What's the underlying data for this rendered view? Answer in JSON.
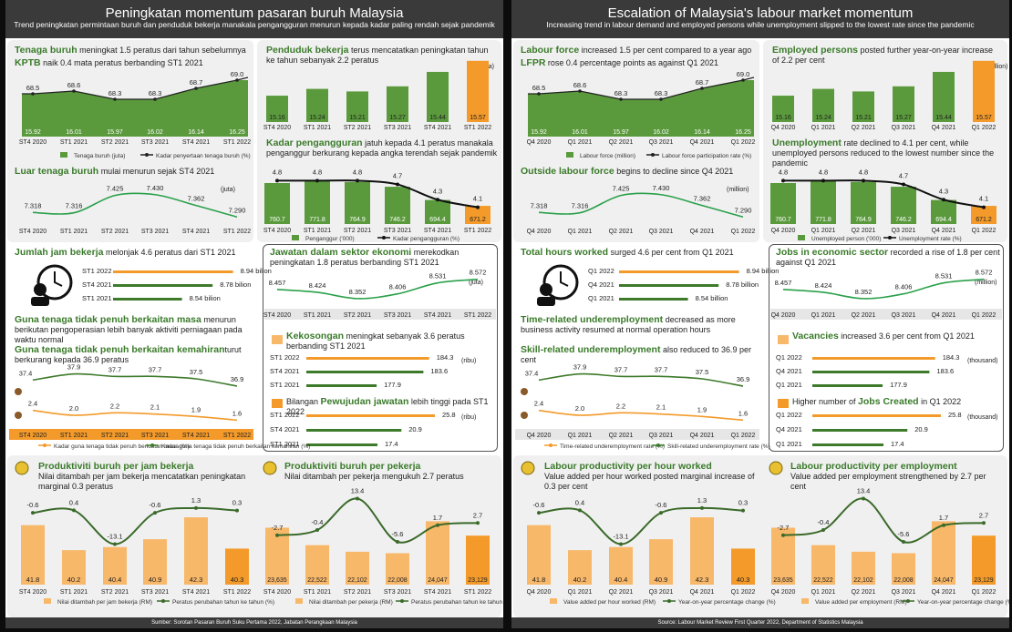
{
  "panels": [
    {
      "header": {
        "title": "Peningkatan momentum pasaran buruh Malaysia",
        "subtitle": "Trend peningkatan permintaan buruh dan penduduk bekerja manakala pengangguran menurun kepada kadar paling rendah sejak pandemik"
      },
      "footer": "Sumber: Sorotan Pasaran Buruh Suku Pertama 2022, Jabatan Perangkaan Malaysia",
      "quarters": [
        "ST4 2020",
        "ST1 2021",
        "ST2 2021",
        "ST3 2021",
        "ST4 2021",
        "ST1 2022"
      ],
      "lf": {
        "h1": "Tenaga buruh",
        "t1": " meningkat 1.5 peratus dari tahun sebelumnya",
        "h2": "KPTB",
        "t2": " naik 0.4 mata peratus berbanding ST1 2021",
        "leg1": "Tenaga buruh (juta)",
        "leg2": "Kadar penyertaan tenaga buruh (%)"
      },
      "emp": {
        "h": "Penduduk bekerja",
        "t": " terus mencatatkan peningkatan tahun ke tahun sebanyak 2.2 peratus",
        "unit": "(juta)"
      },
      "olf": {
        "h": "Luar tenaga buruh",
        "t": " mulai menurun sejak ST4 2021",
        "unit": "(juta)"
      },
      "unemp": {
        "h": "Kadar pengangguran",
        "t": " jatuh kepada 4.1 peratus manakala penganggur berkurang kepada angka terendah sejak pandemik",
        "leg1": "Penganggur ('000)",
        "leg2": "Kadar pengangguran (%)"
      },
      "hours": {
        "h": "Jumlah jam bekerja",
        "t": " melonjak 4.6 peratus dari ST1 2021",
        "rows": [
          {
            "label": "ST1 2022",
            "value": "8.94 bilion"
          },
          {
            "label": "ST4 2021",
            "value": "8.78 bilion"
          },
          {
            "label": "ST1 2021",
            "value": "8.54 bilion"
          }
        ]
      },
      "jobs": {
        "h": "Jawatan dalam sektor ekonomi",
        "t": " merekodkan peningkatan 1.8 peratus berbanding ST1 2021",
        "unit": "(juta)"
      },
      "under": {
        "h1": "Guna tenaga tidak penuh berkaitan masa",
        "t1": " menurun berikutan pengoperasian lebih banyak aktiviti perniagaan pada waktu normal",
        "h2": "Guna tenaga tidak penuh berkaitan kemahiran",
        "t2": "turut berkurang kepada 36.9 peratus",
        "leg1": "Kadar guna tenaga tidak penuh berkaitan masa (%)",
        "leg2": "Kadar guna tenaga tidak penuh berkaitan kemahiran (%)"
      },
      "vac": {
        "h": "Kekosongan",
        "t": " meningkat sebanyak 3.6 peratus berbanding ST1 2021",
        "unit": "(ribu)",
        "rows": [
          {
            "label": "ST1 2022",
            "value": "184.3"
          },
          {
            "label": "ST4 2021",
            "value": "183.6"
          },
          {
            "label": "ST1 2021",
            "value": "177.9"
          }
        ]
      },
      "created": {
        "pre": "Bilangan ",
        "h": "Pewujudan jawatan",
        "t": " lebih tinggi pada ST1 2022",
        "unit": "(ribu)",
        "rows": [
          {
            "label": "ST1 2022",
            "value": "25.8"
          },
          {
            "label": "ST4 2021",
            "value": "20.9"
          },
          {
            "label": "ST1 2021",
            "value": "17.4"
          }
        ]
      },
      "prodh": {
        "h": "Produktiviti buruh per jam bekerja",
        "t": "Nilai ditambah per jam bekerja mencatatkan peningkatan marginal 0.3 peratus",
        "leg1": "Nilai ditambah per jam bekerja (RM)",
        "leg2": "Peratus perubahan tahun ke tahun (%)"
      },
      "prode": {
        "h": "Produktiviti buruh per pekerja",
        "t": "Nilai ditambah per pekerja mengukuh 2.7 peratus",
        "leg1": "Nilai ditambah per pekerja (RM)",
        "leg2": "Peratus perubahan tahun ke tahun (%)"
      }
    },
    {
      "header": {
        "title": "Escalation of Malaysia's labour market momentum",
        "subtitle": "Increasing trend in labour demand and employed persons while unemployment slipped to the lowest rate since the pandemic"
      },
      "footer": "Source: Labour Market Review First Quarter 2022, Department of Statistics Malaysia",
      "quarters": [
        "Q4 2020",
        "Q1 2021",
        "Q2 2021",
        "Q3 2021",
        "Q4 2021",
        "Q1 2022"
      ],
      "lf": {
        "h1": "Labour force",
        "t1": " increased 1.5 per cent compared to a year ago",
        "h2": "LFPR",
        "t2": " rose 0.4 percentage points as against Q1 2021",
        "leg1": "Labour force (million)",
        "leg2": "Labour force participation rate (%)"
      },
      "emp": {
        "h": "Employed persons",
        "t": " posted further year-on-year increase of 2.2 per cent",
        "unit": "(million)"
      },
      "olf": {
        "h": "Outside labour force",
        "t": " begins to decline since  Q4 2021",
        "unit": "(million)"
      },
      "unemp": {
        "h": "Unemployment",
        "t": " rate declined to 4.1 per cent, while unemployed persons reduced to the lowest number since the pandemic",
        "leg1": "Unemployed person ('000)",
        "leg2": "Unemployment rate (%)"
      },
      "hours": {
        "h": "Total hours worked",
        "t": " surged 4.6 per cent from Q1 2021",
        "rows": [
          {
            "label": "Q1 2022",
            "value": "8.94 billion"
          },
          {
            "label": "Q4 2021",
            "value": "8.78 billion"
          },
          {
            "label": "Q1 2021",
            "value": "8.54 billion"
          }
        ]
      },
      "jobs": {
        "h": "Jobs in economic sector",
        "t": " recorded a rise of 1.8 per cent against Q1 2021",
        "unit": "(million)"
      },
      "under": {
        "h1": "Time-related underemployment",
        "t1": " decreased as more business activity resumed at normal operation hours",
        "h2": "Skill-related underemployment",
        "t2": " also reduced to 36.9 per cent",
        "leg1": "Time-related underemployment rate (%)",
        "leg2": "Skill-related underemployment rate (%)"
      },
      "vac": {
        "h": "Vacancies",
        "t": " increased 3.6 per cent from Q1 2021",
        "unit": "(thousand)",
        "rows": [
          {
            "label": "Q1 2022",
            "value": "184.3"
          },
          {
            "label": "Q4 2021",
            "value": "183.6"
          },
          {
            "label": "Q1 2021",
            "value": "177.9"
          }
        ]
      },
      "created": {
        "pre": "Higher number of ",
        "h": "Jobs Created",
        "t": " in  Q1 2022",
        "unit": "(thousand)",
        "rows": [
          {
            "label": "Q1 2022",
            "value": "25.8"
          },
          {
            "label": "Q4 2021",
            "value": "20.9"
          },
          {
            "label": "Q1 2021",
            "value": "17.4"
          }
        ]
      },
      "prodh": {
        "h": "Labour productivity per hour worked",
        "t": "Value added  per hour worked posted marginal increase of 0.3 per cent",
        "leg1": "Value added per hour worked (RM)",
        "leg2": "Year-on-year percentage change (%)"
      },
      "prode": {
        "h": "Labour productivity per employment",
        "t": "Value added per employment strengthened by 2.7 per cent",
        "leg1": "Value added per employment (RM)",
        "leg2": "Year-on-year percentage change (%)"
      }
    }
  ],
  "chart_data": [
    {
      "type": "bar+line",
      "title": "Labour force / LFPR",
      "series": [
        {
          "name": "Labour force (million)",
          "values": [
            15.92,
            16.01,
            15.97,
            16.02,
            16.14,
            16.25
          ]
        },
        {
          "name": "Labour force participation rate (%)",
          "values": [
            68.5,
            68.6,
            68.3,
            68.3,
            68.7,
            69.0
          ]
        }
      ],
      "value_labels": [
        "15.92",
        "16.01",
        "15.97",
        "16.02",
        "16.14",
        "16.25"
      ],
      "line_labels": [
        "68.5",
        "68.6",
        "68.3",
        "68.3",
        "68.7",
        "69.0"
      ]
    },
    {
      "type": "bar",
      "title": "Employed persons",
      "values": [
        15.16,
        15.24,
        15.21,
        15.27,
        15.44,
        15.57
      ],
      "value_labels": [
        "15.16",
        "15.24",
        "15.21",
        "15.27",
        "15.44",
        "15.57"
      ]
    },
    {
      "type": "line",
      "title": "Outside labour force",
      "values": [
        7.318,
        7.316,
        7.425,
        7.43,
        7.362,
        7.29
      ],
      "value_labels": [
        "7.318",
        "7.316",
        "7.425",
        "7.430",
        "7.362",
        "7.290"
      ]
    },
    {
      "type": "bar+line",
      "title": "Unemployment",
      "series": [
        {
          "name": "Unemployed person ('000)",
          "values": [
            760.7,
            771.8,
            764.9,
            746.2,
            694.4,
            671.2
          ]
        },
        {
          "name": "Unemployment rate (%)",
          "values": [
            4.8,
            4.8,
            4.8,
            4.7,
            4.3,
            4.1
          ]
        }
      ],
      "value_labels": [
        "760.7",
        "771.8",
        "764.9",
        "746.2",
        "694.4",
        "671.2"
      ],
      "line_labels": [
        "4.8",
        "4.8",
        "4.8",
        "4.7",
        "4.3",
        "4.1"
      ]
    },
    {
      "type": "line",
      "title": "Jobs in economic sector",
      "values": [
        8.457,
        8.424,
        8.352,
        8.406,
        8.531,
        8.572
      ],
      "value_labels": [
        "8.457",
        "8.424",
        "8.352",
        "8.406",
        "8.531",
        "8.572"
      ]
    },
    {
      "type": "line",
      "title": "Underemployment",
      "series": [
        {
          "name": "Time-related",
          "values": [
            2.4,
            2.0,
            2.2,
            2.1,
            1.9,
            1.6
          ]
        },
        {
          "name": "Skill-related",
          "values": [
            37.4,
            37.9,
            37.7,
            37.7,
            37.5,
            36.9
          ]
        }
      ],
      "time_labels": [
        "2.4",
        "2.0",
        "2.2",
        "2.1",
        "1.9",
        "1.6"
      ],
      "skill_labels": [
        "37.4",
        "37.9",
        "37.7",
        "37.7",
        "37.5",
        "36.9"
      ]
    },
    {
      "type": "bar",
      "title": "Total hours worked (billion)",
      "values": [
        8.94,
        8.78,
        8.54
      ]
    },
    {
      "type": "bar",
      "title": "Vacancies (thousand)",
      "values": [
        184.3,
        183.6,
        177.9
      ]
    },
    {
      "type": "bar",
      "title": "Jobs created (thousand)",
      "values": [
        25.8,
        20.9,
        17.4
      ]
    },
    {
      "type": "bar+line",
      "title": "Labour productivity per hour worked",
      "series": [
        {
          "name": "Value added per hour worked (RM)",
          "values": [
            41.8,
            40.2,
            40.4,
            40.9,
            42.3,
            40.3
          ]
        },
        {
          "name": "Year-on-year percentage change (%)",
          "values": [
            -0.6,
            0.4,
            -13.1,
            -0.6,
            1.3,
            0.3
          ]
        }
      ],
      "value_labels": [
        "41.8",
        "40.2",
        "40.4",
        "40.9",
        "42.3",
        "40.3"
      ],
      "line_labels": [
        "-0.6",
        "0.4",
        "-13.1",
        "-0.6",
        "1.3",
        "0.3"
      ]
    },
    {
      "type": "bar+line",
      "title": "Labour productivity per employment",
      "series": [
        {
          "name": "Value added per employment (RM)",
          "values": [
            23635,
            22522,
            22102,
            22008,
            24047,
            23129
          ]
        },
        {
          "name": "Year-on-year percentage change (%)",
          "values": [
            -2.7,
            -0.4,
            13.4,
            -5.6,
            1.7,
            2.7
          ]
        }
      ],
      "value_labels": [
        "23,635",
        "22,522",
        "22,102",
        "22,008",
        "24,047",
        "23,129"
      ],
      "line_labels": [
        "-2.7",
        "-0.4",
        "13.4",
        "-5.6",
        "1.7",
        "2.7"
      ]
    }
  ],
  "colors": {
    "green": "#5a9a3c",
    "dark_green": "#3d7a2a",
    "orange": "#f39a2a",
    "light_orange": "#f8b86a",
    "header": "#3a3a3a"
  }
}
